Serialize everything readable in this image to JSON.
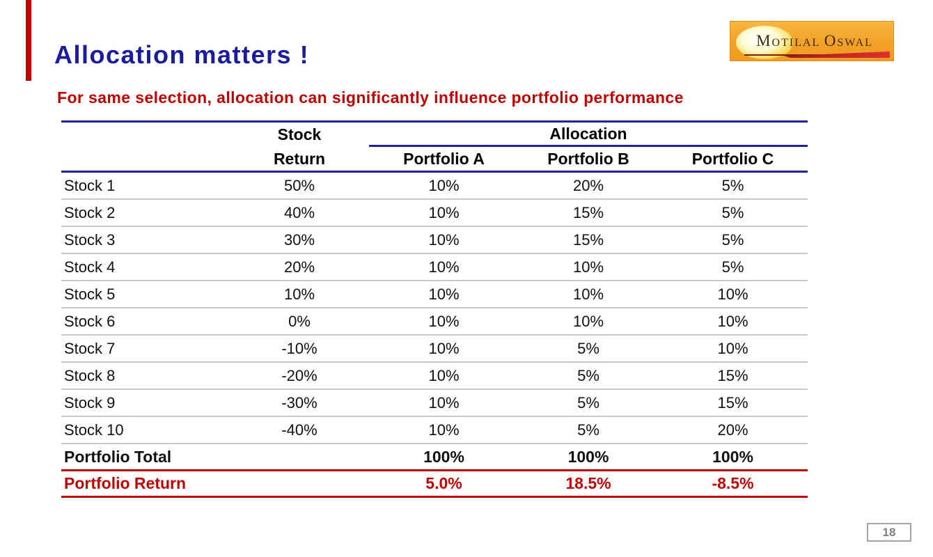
{
  "slide": {
    "title": "Allocation matters !",
    "subtitle": "For same selection, allocation can significantly influence portfolio performance",
    "page_number": "18"
  },
  "logo": {
    "brand": "Motilal Oswal",
    "text_parts": [
      "M",
      "OTILAL ",
      "O",
      "SWAL"
    ]
  },
  "colors": {
    "title_navy": "#1b1b9e",
    "accent_red": "#c00000",
    "table_line_navy": "#21219f",
    "row_separator_grey": "#c6c6c6",
    "logo_orange": "#f3a128"
  },
  "table": {
    "header": {
      "stock_line1": "Stock",
      "stock_line2": "Return",
      "allocation": "Allocation",
      "portfolios": [
        "Portfolio A",
        "Portfolio B",
        "Portfolio C"
      ]
    },
    "rows": [
      [
        "Stock 1",
        "50%",
        "10%",
        "20%",
        "5%"
      ],
      [
        "Stock 2",
        "40%",
        "10%",
        "15%",
        "5%"
      ],
      [
        "Stock 3",
        "30%",
        "10%",
        "15%",
        "5%"
      ],
      [
        "Stock 4",
        "20%",
        "10%",
        "10%",
        "5%"
      ],
      [
        "Stock 5",
        "10%",
        "10%",
        "10%",
        "10%"
      ],
      [
        "Stock 6",
        "0%",
        "10%",
        "10%",
        "10%"
      ],
      [
        "Stock 7",
        "-10%",
        "10%",
        "5%",
        "10%"
      ],
      [
        "Stock 8",
        "-20%",
        "10%",
        "5%",
        "15%"
      ],
      [
        "Stock 9",
        "-30%",
        "10%",
        "5%",
        "15%"
      ],
      [
        "Stock 10",
        "-40%",
        "10%",
        "5%",
        "20%"
      ]
    ],
    "total_row": [
      "Portfolio Total",
      "",
      "100%",
      "100%",
      "100%"
    ],
    "return_row": [
      "Portfolio Return",
      "",
      "5.0%",
      "18.5%",
      "-8.5%"
    ]
  }
}
